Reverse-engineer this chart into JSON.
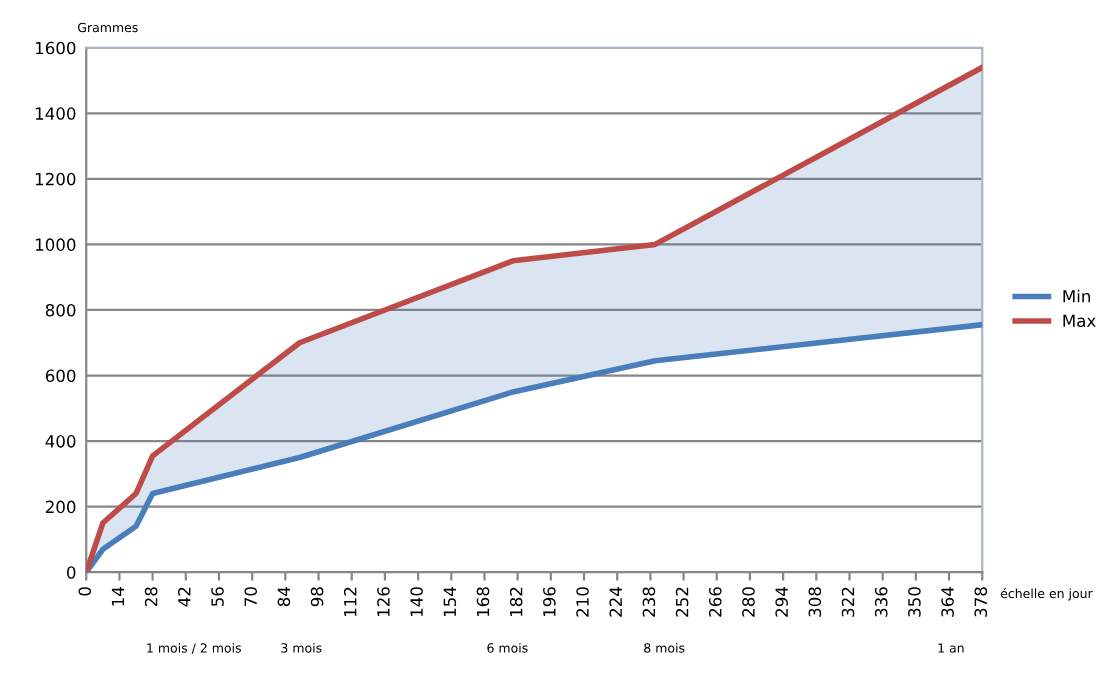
{
  "chart_data": {
    "type": "line",
    "ylabel": "Grammes",
    "xlabel": "échelle en jour",
    "x": [
      0,
      7,
      21,
      28,
      90,
      180,
      240,
      378
    ],
    "series": [
      {
        "name": "Min",
        "color": "#4a7ebb",
        "values": [
          0,
          70,
          140,
          240,
          350,
          550,
          645,
          755
        ],
        "lower": [
          0,
          70,
          140,
          240,
          350,
          550,
          645,
          755
        ],
        "upper": [
          0,
          150,
          240,
          355,
          700,
          950,
          1000,
          1540
        ]
      },
      {
        "name": "Max",
        "color": "#be4b48",
        "values": [
          0,
          150,
          240,
          355,
          700,
          950,
          1000,
          1540
        ]
      }
    ],
    "xlim": [
      0,
      378
    ],
    "xticks": [
      0,
      14,
      28,
      42,
      56,
      70,
      84,
      98,
      112,
      126,
      140,
      154,
      168,
      182,
      196,
      210,
      224,
      238,
      252,
      266,
      280,
      294,
      308,
      322,
      336,
      350,
      364,
      378
    ],
    "ylim": [
      0,
      1600
    ],
    "yticks": [
      0,
      200,
      400,
      600,
      800,
      1000,
      1200,
      1400,
      1600
    ],
    "annotations": [
      "1 mois / 2 mois",
      "3 mois",
      "6 mois",
      "8 mois",
      "1 an"
    ],
    "grid": "y",
    "legend": "right",
    "marker": "none",
    "line_style": "solid"
  }
}
